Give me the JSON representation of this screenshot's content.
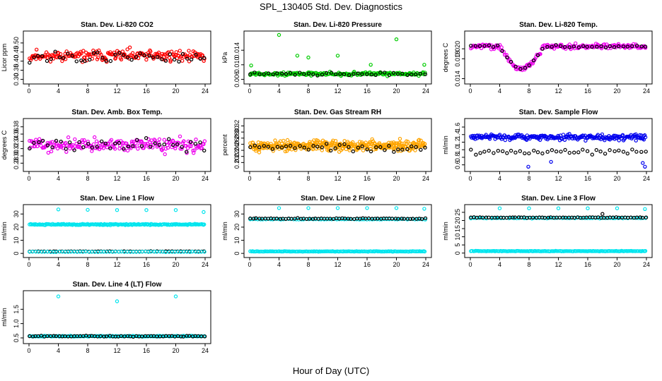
{
  "figure": {
    "title": "SPL_130405  Std. Dev. Diagnostics",
    "xlabel": "Hour of Day (UTC)"
  },
  "chart_data": [
    {
      "type": "scatter",
      "title": "Stan. Dev. Li-820 CO2",
      "xlabel": "",
      "ylabel": "Licor ppm",
      "xlim": [
        0,
        24
      ],
      "ylim": [
        0.29,
        0.55
      ],
      "xticks": [
        "0",
        "4",
        "8",
        "12",
        "16",
        "20",
        "24"
      ],
      "yticks": [
        "0.30",
        "0.35",
        "0.40",
        "0.45",
        "0.50"
      ],
      "series": [
        {
          "color": "#ff0000",
          "gen": {
            "n": 200,
            "base": 0.43,
            "amp": 0.035,
            "wave": 0.0,
            "noise": 0.05,
            "seed": 11
          }
        },
        {
          "color": "#000000",
          "gen": {
            "n": 42,
            "base": 0.42,
            "amp": 0.02,
            "wave": 0.0,
            "noise": 0.05,
            "seed": 12
          }
        }
      ]
    },
    {
      "type": "scatter",
      "title": "Stan. Dev. Li-820 Pressure",
      "xlabel": "",
      "ylabel": "kPa",
      "xlim": [
        0,
        24
      ],
      "ylim": [
        0.0055,
        0.0185
      ],
      "xticks": [
        "0",
        "4",
        "8",
        "12",
        "16",
        "20",
        "24"
      ],
      "yticks": [
        "0.006",
        "0.010",
        "0.014"
      ],
      "series": [
        {
          "color": "#00cc00",
          "gen": {
            "n": 200,
            "base": 0.0075,
            "amp": 0.0008,
            "wave": 0.0,
            "noise": 0.0008,
            "seed": 21
          }
        },
        {
          "color": "#000000",
          "gen": {
            "n": 40,
            "base": 0.0075,
            "amp": 0.0008,
            "wave": 0.0,
            "noise": 0.0006,
            "seed": 22
          }
        }
      ],
      "outliers": [
        {
          "x": 0.2,
          "y": 0.0098,
          "color": "#00cc00"
        },
        {
          "x": 4.0,
          "y": 0.0182,
          "color": "#00cc00"
        },
        {
          "x": 6.5,
          "y": 0.0125,
          "color": "#00cc00"
        },
        {
          "x": 8.0,
          "y": 0.012,
          "color": "#00cc00"
        },
        {
          "x": 12.0,
          "y": 0.0125,
          "color": "#00cc00"
        },
        {
          "x": 16.5,
          "y": 0.01,
          "color": "#00cc00"
        },
        {
          "x": 20.0,
          "y": 0.017,
          "color": "#00cc00"
        },
        {
          "x": 23.8,
          "y": 0.01,
          "color": "#00cc00"
        }
      ]
    },
    {
      "type": "scatter",
      "title": "Stan. Dev. Li-820 Temp.",
      "xlabel": "",
      "ylabel": "degrees C",
      "xlim": [
        0,
        24
      ],
      "ylim": [
        0.0135,
        0.023
      ],
      "xticks": [
        "0",
        "4",
        "8",
        "12",
        "16",
        "20",
        "24"
      ],
      "yticks": [
        "0.014",
        "0.018",
        "0.020"
      ],
      "series": [
        {
          "color": "#ee00ee",
          "gen": {
            "n": 200,
            "base": 0.0205,
            "amp": 0.0,
            "wave": 0.0,
            "noise": 0.0008,
            "seed": 31,
            "dip": [
              4,
              10,
              0.0045
            ]
          }
        },
        {
          "color": "#000000",
          "gen": {
            "n": 40,
            "base": 0.0205,
            "amp": 0.0,
            "wave": 0.0,
            "noise": 0.0005,
            "seed": 32,
            "dip": [
              4,
              10,
              0.0045
            ]
          }
        }
      ]
    },
    {
      "type": "scatter",
      "title": "Stan. Dev. Amb. Box Temp.",
      "xlabel": "",
      "ylabel": "degrees C",
      "xlim": [
        0,
        24
      ],
      "ylim": [
        0.265,
        0.395
      ],
      "xticks": [
        "0",
        "4",
        "8",
        "12",
        "16",
        "20",
        "24"
      ],
      "yticks": [
        "0.28",
        "0.30",
        "0.32",
        "0.34",
        "0.36",
        "0.38"
      ],
      "series": [
        {
          "color": "#ee00ee",
          "gen": {
            "n": 200,
            "base": 0.33,
            "amp": 0.0,
            "wave": 0.0,
            "noise": 0.028,
            "seed": 41
          }
        },
        {
          "color": "#000000",
          "gen": {
            "n": 40,
            "base": 0.33,
            "amp": 0.0,
            "wave": 0.0,
            "noise": 0.025,
            "seed": 42
          }
        }
      ]
    },
    {
      "type": "scatter",
      "title": "Stan. Dev. Gas Stream RH",
      "xlabel": "",
      "ylabel": "percent",
      "xlim": [
        0,
        24
      ],
      "ylim": [
        0.18,
        0.335
      ],
      "xticks": [
        "0",
        "4",
        "8",
        "12",
        "16",
        "20",
        "24"
      ],
      "yticks": [
        "0.20",
        "0.22",
        "0.24",
        "0.26",
        "0.28",
        "0.30",
        "0.32"
      ],
      "series": [
        {
          "color": "#ffa500",
          "gen": {
            "n": 360,
            "base": 0.255,
            "amp": 0.0,
            "wave": 0.0,
            "noise": 0.028,
            "seed": 51
          }
        },
        {
          "color": "#000000",
          "gen": {
            "n": 40,
            "base": 0.25,
            "amp": 0.0,
            "wave": 0.0,
            "noise": 0.02,
            "seed": 52
          }
        }
      ]
    },
    {
      "type": "scatter",
      "title": "Stan. Dev. Sample Flow",
      "xlabel": "",
      "ylabel": "ml/min",
      "xlim": [
        0,
        24
      ],
      "ylim": [
        0.5,
        1.75
      ],
      "xticks": [
        "0",
        "4",
        "8",
        "12",
        "16",
        "20",
        "24"
      ],
      "yticks": [
        "0.6",
        "0.8",
        "1.0",
        "1.2",
        "1.4",
        "1.6"
      ],
      "series": [
        {
          "color": "#0000ee",
          "gen": {
            "n": 240,
            "base": 1.33,
            "amp": 0.0,
            "wave": 0.0,
            "noise": 0.12,
            "seed": 61
          }
        },
        {
          "color": "#000000",
          "gen": {
            "n": 40,
            "base": 0.95,
            "amp": 0.0,
            "wave": 0.0,
            "noise": 0.12,
            "seed": 62
          }
        }
      ],
      "outliers": [
        {
          "x": 7.9,
          "y": 0.55,
          "color": "#0000ee"
        },
        {
          "x": 11.0,
          "y": 0.68,
          "color": "#0000ee"
        },
        {
          "x": 23.8,
          "y": 0.55,
          "color": "#0000ee"
        },
        {
          "x": 23.5,
          "y": 0.65,
          "color": "#0000ee"
        }
      ]
    },
    {
      "type": "scatter",
      "title": "Stan. Dev. Line 1 Flow",
      "xlabel": "",
      "ylabel": "ml/min",
      "xlim": [
        0,
        24
      ],
      "ylim": [
        -1,
        35
      ],
      "xticks": [
        "0",
        "4",
        "8",
        "12",
        "16",
        "20",
        "24"
      ],
      "yticks": [
        "0",
        "10",
        "20",
        "30"
      ],
      "series": [
        {
          "color": "#00e5ee",
          "gen": {
            "n": 200,
            "base": 22.0,
            "amp": 0.0,
            "wave": 0.0,
            "noise": 0.8,
            "seed": 71
          }
        },
        {
          "color": "#000000",
          "gen": {
            "n": 60,
            "base": 1.5,
            "amp": 0.0,
            "wave": 0.0,
            "noise": 0.3,
            "seed": 72
          }
        },
        {
          "color": "#00e5ee",
          "gen": {
            "n": 60,
            "base": 1.2,
            "amp": 0.0,
            "wave": 0.0,
            "noise": 0.3,
            "seed": 73
          }
        }
      ],
      "outliers": [
        {
          "x": 4.0,
          "y": 33.5,
          "color": "#00e5ee"
        },
        {
          "x": 8.0,
          "y": 33.2,
          "color": "#00e5ee"
        },
        {
          "x": 12.0,
          "y": 33.0,
          "color": "#00e5ee"
        },
        {
          "x": 16.0,
          "y": 33.0,
          "color": "#00e5ee"
        },
        {
          "x": 20.0,
          "y": 33.0,
          "color": "#00e5ee"
        },
        {
          "x": 23.8,
          "y": 31.5,
          "color": "#00e5ee"
        }
      ]
    },
    {
      "type": "scatter",
      "title": "Stan. Dev. Line 2 Flow",
      "xlabel": "",
      "ylabel": "ml/min",
      "xlim": [
        0,
        24
      ],
      "ylim": [
        -1,
        35
      ],
      "xticks": [
        "0",
        "4",
        "8",
        "12",
        "16",
        "20",
        "24"
      ],
      "yticks": [
        "0",
        "10",
        "20",
        "30"
      ],
      "series": [
        {
          "color": "#00e5ee",
          "gen": {
            "n": 70,
            "base": 26.0,
            "amp": 0.0,
            "wave": 0.0,
            "noise": 0.5,
            "seed": 81
          }
        },
        {
          "color": "#000000",
          "gen": {
            "n": 60,
            "base": 26.5,
            "amp": 0.0,
            "wave": 0.0,
            "noise": 0.5,
            "seed": 82
          }
        },
        {
          "color": "#00e5ee",
          "gen": {
            "n": 160,
            "base": 1.5,
            "amp": 0.0,
            "wave": 0.0,
            "noise": 0.3,
            "seed": 83
          }
        }
      ],
      "outliers": [
        {
          "x": 4.0,
          "y": 34.5,
          "color": "#00e5ee"
        },
        {
          "x": 8.0,
          "y": 34.5,
          "color": "#00e5ee"
        },
        {
          "x": 12.0,
          "y": 34.5,
          "color": "#00e5ee"
        },
        {
          "x": 16.0,
          "y": 34.5,
          "color": "#00e5ee"
        },
        {
          "x": 20.0,
          "y": 34.5,
          "color": "#00e5ee"
        },
        {
          "x": 23.8,
          "y": 34.0,
          "color": "#00e5ee"
        }
      ]
    },
    {
      "type": "scatter",
      "title": "Stan. Dev. Line 3 Flow",
      "xlabel": "",
      "ylabel": "ml/min",
      "xlim": [
        0,
        24
      ],
      "ylim": [
        -1,
        28
      ],
      "xticks": [
        "0",
        "4",
        "8",
        "12",
        "16",
        "20",
        "24"
      ],
      "yticks": [
        "0",
        "5",
        "10",
        "15",
        "20",
        "25"
      ],
      "series": [
        {
          "color": "#00e5ee",
          "gen": {
            "n": 70,
            "base": 21.5,
            "amp": 0.0,
            "wave": 0.0,
            "noise": 0.4,
            "seed": 91
          }
        },
        {
          "color": "#000000",
          "gen": {
            "n": 60,
            "base": 21.8,
            "amp": 0.0,
            "wave": 0.0,
            "noise": 0.4,
            "seed": 92
          }
        },
        {
          "color": "#00e5ee",
          "gen": {
            "n": 160,
            "base": 1.2,
            "amp": 0.0,
            "wave": 0.0,
            "noise": 0.25,
            "seed": 93
          }
        }
      ],
      "outliers": [
        {
          "x": 4.0,
          "y": 27.5,
          "color": "#00e5ee"
        },
        {
          "x": 8.0,
          "y": 27.5,
          "color": "#00e5ee"
        },
        {
          "x": 12.0,
          "y": 27.5,
          "color": "#00e5ee"
        },
        {
          "x": 16.0,
          "y": 27.5,
          "color": "#00e5ee"
        },
        {
          "x": 18.0,
          "y": 24.0,
          "color": "#000000"
        },
        {
          "x": 20.0,
          "y": 27.5,
          "color": "#00e5ee"
        },
        {
          "x": 23.8,
          "y": 27.0,
          "color": "#00e5ee"
        }
      ]
    },
    {
      "type": "scatter",
      "title": "Stan. Dev. Line 4 (LT) Flow",
      "xlabel": "",
      "ylabel": "ml/min",
      "xlim": [
        0,
        24
      ],
      "ylim": [
        0.4,
        2.05
      ],
      "xticks": [
        "0",
        "4",
        "8",
        "12",
        "16",
        "20",
        "24"
      ],
      "yticks": [
        "0.5",
        "1.0",
        "1.5"
      ],
      "series": [
        {
          "color": "#00e5ee",
          "gen": {
            "n": 160,
            "base": 0.56,
            "amp": 0.0,
            "wave": 0.0,
            "noise": 0.025,
            "seed": 101
          }
        },
        {
          "color": "#000000",
          "gen": {
            "n": 60,
            "base": 0.56,
            "amp": 0.0,
            "wave": 0.0,
            "noise": 0.025,
            "seed": 102
          }
        }
      ],
      "outliers": [
        {
          "x": 4.0,
          "y": 1.95,
          "color": "#00e5ee"
        },
        {
          "x": 12.0,
          "y": 1.78,
          "color": "#00e5ee"
        },
        {
          "x": 20.0,
          "y": 1.95,
          "color": "#00e5ee"
        }
      ]
    }
  ]
}
